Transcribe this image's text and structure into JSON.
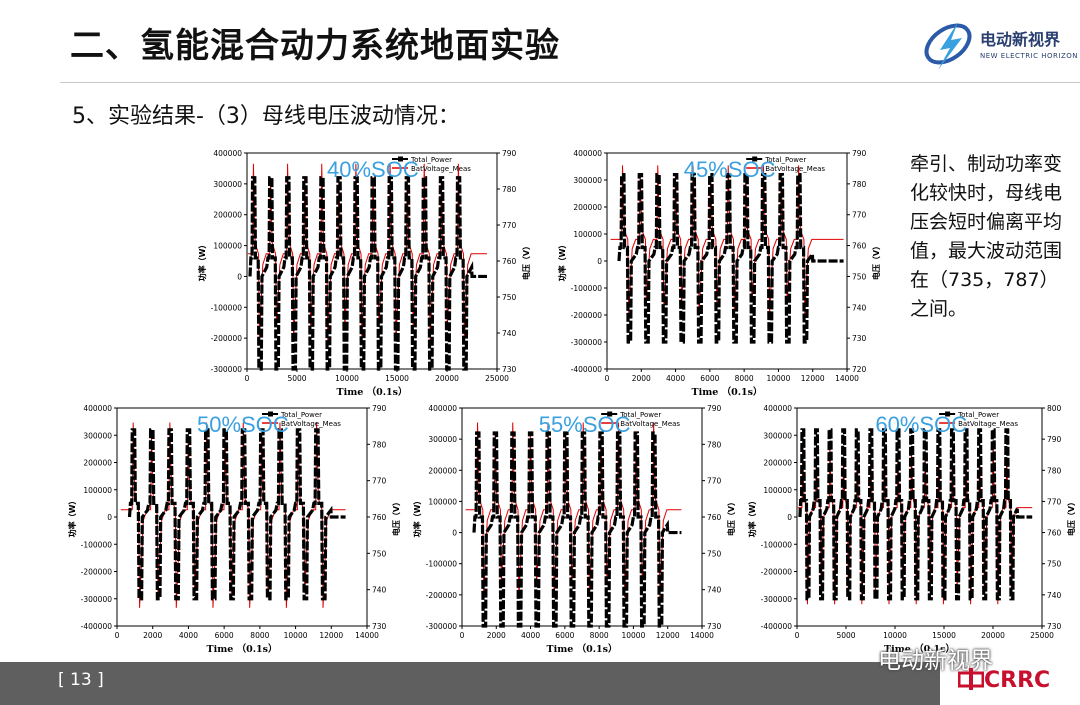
{
  "header": {
    "title": "二、氢能混合动力系统地面实验",
    "logo_text": "电动新视界",
    "logo_text_en": "NEW ELECTRIC HORIZON"
  },
  "subtitle": "5、实验结果-（3）母线电压波动情况：",
  "note": "牵引、制动功率变化较快时，母线电压会短时偏离平均值，最大波动范围在（735，787）之间。",
  "footer": {
    "page_number": "[ 13 ]",
    "watermark": "电动新视界",
    "brand": "CRRC"
  },
  "colors": {
    "power": "#000000",
    "voltage": "#e00000",
    "soc_label": "#3aa0e0",
    "footer": "#5f5f5f"
  },
  "chart_data": [
    {
      "type": "line",
      "soc_label": "40%SOC",
      "xlabel": "Time （0.1s）",
      "ylabel": "功率（W）",
      "y2label": "电压（V）",
      "xlim": [
        0,
        25000
      ],
      "ylim": [
        -300000,
        400000
      ],
      "y2lim": [
        730,
        790
      ],
      "xticks": [
        0,
        5000,
        10000,
        15000,
        20000,
        25000
      ],
      "yticks": [
        -300000,
        -200000,
        -100000,
        0,
        100000,
        200000,
        300000,
        400000
      ],
      "y2ticks": [
        730,
        740,
        750,
        760,
        770,
        780,
        790
      ],
      "series": [
        {
          "name": "Total_Power",
          "axis": "left",
          "pulses": 13,
          "x_start": 300,
          "x_end": 22500,
          "pos_peak": 320000,
          "neg_peak": -300000,
          "baseline": 60000,
          "end_x": 24000
        },
        {
          "name": "BatVoltage_Meas",
          "axis": "right",
          "mean": 762,
          "max": 787,
          "min": 738
        }
      ]
    },
    {
      "type": "line",
      "soc_label": "45%SOC",
      "xlabel": "Time （0.1s）",
      "ylabel": "功率（W）",
      "y2label": "电压（V）",
      "xlim": [
        0,
        14000
      ],
      "ylim": [
        -400000,
        400000
      ],
      "y2lim": [
        720,
        790
      ],
      "xticks": [
        0,
        2000,
        4000,
        6000,
        8000,
        10000,
        12000,
        14000
      ],
      "yticks": [
        -400000,
        -300000,
        -200000,
        -100000,
        0,
        100000,
        200000,
        300000,
        400000
      ],
      "y2ticks": [
        720,
        730,
        740,
        750,
        760,
        770,
        780,
        790
      ],
      "series": [
        {
          "name": "Total_Power",
          "axis": "left",
          "pulses": 11,
          "x_start": 700,
          "x_end": 12000,
          "pos_peak": 320000,
          "neg_peak": -300000,
          "baseline": 50000,
          "end_x": 13800
        },
        {
          "name": "BatVoltage_Meas",
          "axis": "right",
          "mean": 762,
          "max": 786,
          "min": 738
        }
      ]
    },
    {
      "type": "line",
      "soc_label": "50%SOC",
      "xlabel": "Time （0.1s）",
      "ylabel": "功率（W）",
      "y2label": "电压（V）",
      "xlim": [
        0,
        14000
      ],
      "ylim": [
        -400000,
        400000
      ],
      "y2lim": [
        730,
        790
      ],
      "xticks": [
        0,
        2000,
        4000,
        6000,
        8000,
        10000,
        12000,
        14000
      ],
      "yticks": [
        -400000,
        -300000,
        -200000,
        -100000,
        0,
        100000,
        200000,
        300000,
        400000
      ],
      "y2ticks": [
        730,
        740,
        750,
        760,
        770,
        780,
        790
      ],
      "series": [
        {
          "name": "Total_Power",
          "axis": "left",
          "pulses": 11,
          "x_start": 700,
          "x_end": 12000,
          "pos_peak": 320000,
          "neg_peak": -300000,
          "baseline": 50000,
          "end_x": 12800
        },
        {
          "name": "BatVoltage_Meas",
          "axis": "right",
          "mean": 762,
          "max": 786,
          "min": 735
        }
      ]
    },
    {
      "type": "line",
      "soc_label": "55%SOC",
      "xlabel": "Time （0.1s）",
      "ylabel": "功率（W）",
      "y2label": "电压（V）",
      "xlim": [
        0,
        14000
      ],
      "ylim": [
        -300000,
        400000
      ],
      "y2lim": [
        730,
        790
      ],
      "xticks": [
        0,
        2000,
        4000,
        6000,
        8000,
        10000,
        12000,
        14000
      ],
      "yticks": [
        -300000,
        -200000,
        -100000,
        0,
        100000,
        200000,
        300000,
        400000
      ],
      "y2ticks": [
        730,
        740,
        750,
        760,
        770,
        780,
        790
      ],
      "series": [
        {
          "name": "Total_Power",
          "axis": "left",
          "pulses": 11,
          "x_start": 700,
          "x_end": 12000,
          "pos_peak": 320000,
          "neg_peak": -300000,
          "baseline": 50000,
          "end_x": 12800
        },
        {
          "name": "BatVoltage_Meas",
          "axis": "right",
          "mean": 762,
          "max": 786,
          "min": 738
        }
      ]
    },
    {
      "type": "line",
      "soc_label": "60%SOC",
      "xlabel": "Time （0.1s）",
      "ylabel": "功率（W）",
      "y2label": "电压（V）",
      "xlim": [
        0,
        25000
      ],
      "ylim": [
        -400000,
        400000
      ],
      "y2lim": [
        730,
        800
      ],
      "xticks": [
        0,
        5000,
        10000,
        15000,
        20000,
        25000
      ],
      "yticks": [
        -400000,
        -300000,
        -200000,
        -100000,
        0,
        100000,
        200000,
        300000,
        400000
      ],
      "y2ticks": [
        730,
        740,
        750,
        760,
        770,
        780,
        790,
        800
      ],
      "series": [
        {
          "name": "Total_Power",
          "axis": "left",
          "pulses": 16,
          "x_start": 300,
          "x_end": 22500,
          "pos_peak": 320000,
          "neg_peak": -300000,
          "baseline": 60000,
          "end_x": 24000
        },
        {
          "name": "BatVoltage_Meas",
          "axis": "right",
          "mean": 768,
          "max": 787,
          "min": 737
        }
      ]
    }
  ]
}
